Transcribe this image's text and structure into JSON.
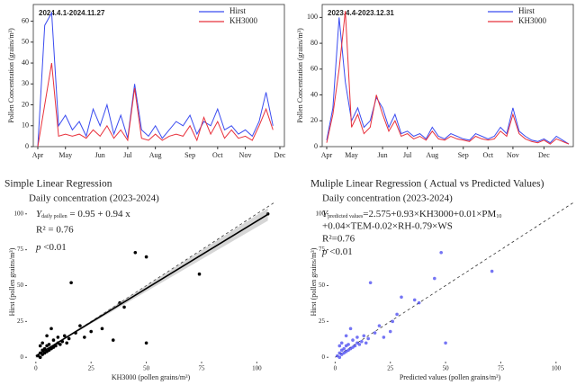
{
  "chart_data": [
    {
      "type": "line",
      "annotation": "2024.4.1-2024.11.27",
      "y_label": "Pollen Concentration (grains/m³)",
      "categories": [
        "Apr",
        null,
        null,
        null,
        "May",
        null,
        null,
        null,
        null,
        "Jun",
        null,
        null,
        null,
        "Jul",
        null,
        null,
        null,
        "Aug",
        null,
        null,
        null,
        null,
        "Sep",
        null,
        null,
        null,
        "Oct",
        null,
        null,
        null,
        "Nov",
        null,
        null,
        null,
        null,
        "Dec"
      ],
      "series": [
        {
          "name": "Hirst",
          "color": "#3b4cf0",
          "values": [
            0,
            58,
            64,
            10,
            15,
            8,
            12,
            5,
            18,
            10,
            20,
            6,
            15,
            4,
            30,
            8,
            5,
            10,
            4,
            8,
            12,
            10,
            15,
            6,
            12,
            10,
            18,
            8,
            10,
            6,
            8,
            5,
            12,
            26,
            10,
            null
          ]
        },
        {
          "name": "KH3000",
          "color": "#e8313c",
          "values": [
            0,
            20,
            40,
            5,
            6,
            5,
            6,
            4,
            8,
            5,
            10,
            4,
            8,
            3,
            28,
            4,
            3,
            6,
            3,
            5,
            6,
            5,
            10,
            3,
            14,
            6,
            12,
            4,
            8,
            4,
            5,
            3,
            10,
            18,
            8,
            null
          ]
        }
      ],
      "ylim": [
        0,
        68
      ],
      "yticks": [
        0,
        10,
        20,
        30,
        40,
        50,
        60
      ],
      "legend": "upper right"
    },
    {
      "type": "line",
      "annotation": "2023.4.4-2023.12.31",
      "y_label": "Pollen Concentration (grains/m³)",
      "categories": [
        "Apr",
        null,
        null,
        null,
        "May",
        null,
        null,
        null,
        null,
        "Jun",
        null,
        null,
        null,
        "Jul",
        null,
        null,
        null,
        "Aug",
        null,
        null,
        null,
        null,
        "Sep",
        null,
        null,
        null,
        "Oct",
        null,
        null,
        null,
        "Nov",
        null,
        null,
        null,
        null,
        "Dec",
        null,
        null,
        null,
        null
      ],
      "series": [
        {
          "name": "Hirst",
          "color": "#3b4cf0",
          "values": [
            5,
            30,
            100,
            50,
            20,
            30,
            15,
            20,
            38,
            30,
            15,
            25,
            10,
            12,
            8,
            10,
            6,
            15,
            8,
            6,
            10,
            8,
            6,
            5,
            10,
            8,
            6,
            8,
            15,
            10,
            30,
            12,
            8,
            5,
            4,
            6,
            3,
            8,
            5,
            2
          ]
        },
        {
          "name": "KH3000",
          "color": "#e8313c",
          "values": [
            3,
            25,
            60,
            105,
            15,
            25,
            10,
            15,
            40,
            25,
            12,
            20,
            8,
            10,
            6,
            8,
            5,
            12,
            6,
            5,
            8,
            6,
            5,
            4,
            8,
            6,
            5,
            6,
            12,
            8,
            25,
            10,
            6,
            4,
            3,
            5,
            2,
            6,
            4,
            2
          ]
        }
      ],
      "ylim": [
        0,
        110
      ],
      "yticks": [
        0,
        20,
        40,
        60,
        80,
        100
      ],
      "legend": "upper right"
    },
    {
      "type": "scatter",
      "title": "Simple Linear Regression",
      "subtitle": "Daily concentration (2023-2024)",
      "equation": {
        "y": "Y",
        "subscript": "daily pollen",
        "rhs": " = 0.95 + 0.94 x"
      },
      "r2": "R² = 0.76",
      "p": {
        "symbol": "p",
        "text": " <0.01"
      },
      "x_label": "KH3000 (pollen grains/m³)",
      "y_label": "Hirst (pollen grains/m³)",
      "color": "#000000",
      "x": [
        1,
        2,
        2,
        3,
        3,
        4,
        4,
        5,
        5,
        6,
        6,
        7,
        8,
        8,
        9,
        10,
        10,
        11,
        12,
        13,
        14,
        15,
        16,
        18,
        20,
        22,
        25,
        30,
        35,
        38,
        40,
        45,
        50,
        50,
        74,
        105,
        3,
        5,
        7,
        2
      ],
      "values": [
        1,
        3,
        0,
        2,
        5,
        3,
        6,
        4,
        8,
        5,
        9,
        6,
        7,
        12,
        8,
        10,
        14,
        9,
        11,
        15,
        10,
        13,
        52,
        17,
        22,
        14,
        18,
        20,
        12,
        38,
        35,
        73,
        70,
        10,
        58,
        100,
        10,
        15,
        20,
        8
      ],
      "fit_line": {
        "x": [
          0,
          105
        ],
        "values": [
          0.95,
          99.65
        ]
      },
      "reference_line": {
        "x": [
          0,
          108
        ],
        "values": [
          0,
          108
        ]
      },
      "xlim": [
        -4,
        108
      ],
      "ylim": [
        -3,
        108
      ],
      "xticks": [
        0,
        25,
        50,
        75,
        100
      ],
      "yticks": [
        0,
        25,
        50,
        75,
        100
      ]
    },
    {
      "type": "scatter",
      "title": "Muliple Linear Regression ( Actual vs Predicted Values)",
      "subtitle": "Daily concentration (2023-2024)",
      "equation": {
        "y": "Y",
        "subscript": "predicted values",
        "rhs": "=2.575+0.93×KH3000+0.01×PM",
        "subscript2": "10",
        "line2": "+0.04×TEM-0.02×RH-0.79×WS"
      },
      "r2": "R²=0.76",
      "p": {
        "symbol": "p",
        "text": " <0.01"
      },
      "x_label": "Predicted values (pollen grains/m³)",
      "y_label": "Hirst (pollen grains/m³)",
      "color": "#3b3bf0",
      "x": [
        1,
        2,
        2,
        3,
        3,
        4,
        4,
        5,
        5,
        6,
        6,
        7,
        8,
        8,
        9,
        10,
        10,
        11,
        12,
        13,
        14,
        15,
        16,
        18,
        20,
        22,
        25,
        28,
        30,
        36,
        38,
        45,
        48,
        50,
        71,
        3,
        5,
        7,
        2,
        26
      ],
      "values": [
        1,
        3,
        0,
        2,
        5,
        3,
        6,
        4,
        8,
        5,
        9,
        6,
        7,
        12,
        8,
        10,
        14,
        9,
        11,
        15,
        10,
        13,
        52,
        17,
        22,
        14,
        18,
        30,
        42,
        40,
        38,
        55,
        73,
        10,
        60,
        10,
        15,
        20,
        8,
        25
      ],
      "reference_line": {
        "x": [
          0,
          108
        ],
        "values": [
          0,
          108
        ]
      },
      "xlim": [
        -3,
        107
      ],
      "ylim": [
        -3,
        108
      ],
      "xticks": [
        0,
        25,
        50,
        75,
        100
      ],
      "yticks": [
        0,
        25,
        50,
        75,
        100
      ]
    }
  ]
}
